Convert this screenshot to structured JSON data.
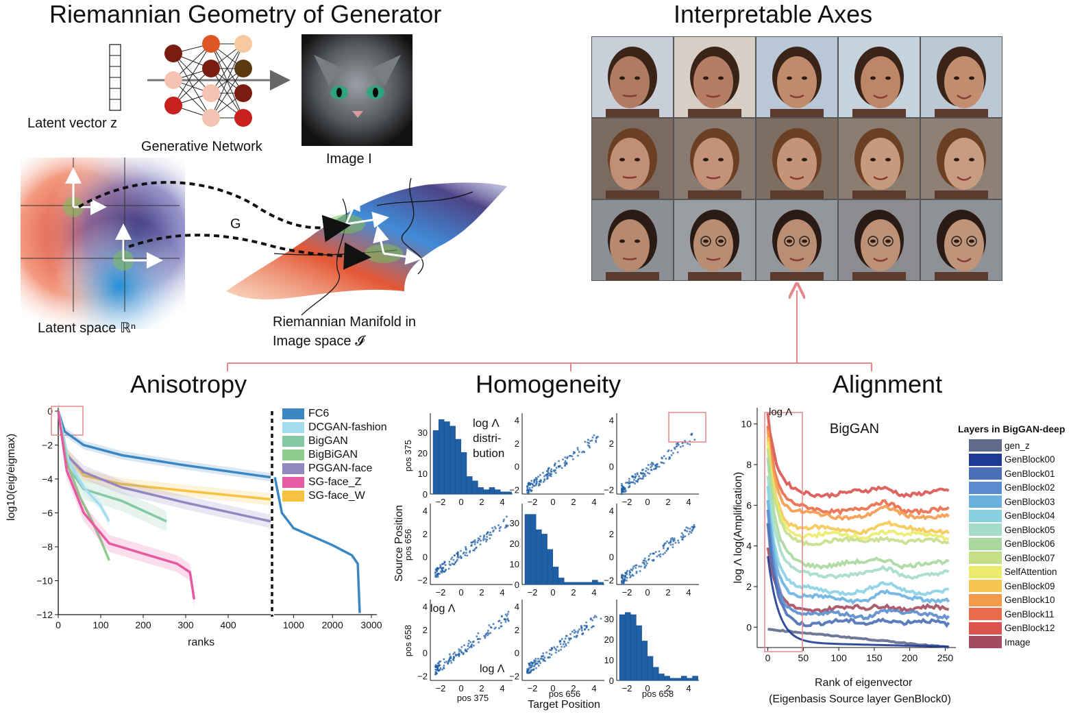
{
  "titles": {
    "riemannian": "Riemannian Geometry of Generator",
    "interpretable": "Interpretable Axes",
    "anisotropy": "Anisotropy",
    "homogeneity": "Homogeneity",
    "alignment": "Alignment"
  },
  "diagram": {
    "latent_vector_label": "Latent vector z",
    "network_label": "Generative Network",
    "image_label": "Image I",
    "g_label": "G",
    "latent_space_label": "Latent space ℝⁿ",
    "manifold_label_1": "Riemannian Manifold in",
    "manifold_label_2": "Image space 𝓘"
  },
  "faces": {
    "rows": [
      {
        "tones": [
          "#b07b63",
          "#b57e64",
          "#c08a6c",
          "#bd8668",
          "#c28e6f"
        ],
        "bg": [
          "#c9cfd8",
          "#d7cfc6",
          "#b9c7d6",
          "#c6d2dc",
          "#bcc9d5"
        ],
        "hair": "#3a2418"
      },
      {
        "tones": [
          "#c08f75",
          "#c39278",
          "#c39478",
          "#c69a7d",
          "#c89c80"
        ],
        "bg": [
          "#7a6a60",
          "#8a7b72",
          "#7e6e62",
          "#8b7c70",
          "#8e8075"
        ],
        "hair": "#6a3f24"
      },
      {
        "tones": [
          "#b78a70",
          "#b98d72",
          "#ba8e74",
          "#bd9176",
          "#c09479"
        ],
        "bg": [
          "#8c8f94",
          "#9a9da2",
          "#93969a",
          "#8a8c90",
          "#8e9195"
        ],
        "hair": "#2a1c14"
      }
    ]
  },
  "anisotropy_chart": {
    "ylabel": "log10(eig/eigmax)",
    "xlabel": "ranks",
    "yticks": [
      "0",
      "−2",
      "−4",
      "−6",
      "−8",
      "−10",
      "−12"
    ],
    "xticks_left": [
      "0",
      "100",
      "200",
      "300",
      "400"
    ],
    "xticks_right": [
      "1000",
      "2000",
      "3000"
    ],
    "legend": [
      {
        "name": "FC6",
        "color": "#3a87c3"
      },
      {
        "name": "DCGAN-fashion",
        "color": "#a6dcef"
      },
      {
        "name": "BigGAN",
        "color": "#84c9a4"
      },
      {
        "name": "BigBiGAN",
        "color": "#8ecd8c"
      },
      {
        "name": "PGGAN-face",
        "color": "#9387c1"
      },
      {
        "name": "SG-face_Z",
        "color": "#e55aa2"
      },
      {
        "name": "SG-face_W",
        "color": "#f5c242"
      }
    ]
  },
  "homogeneity_chart": {
    "ylabel": "Source Position",
    "xlabel": "Target Position",
    "row_labels": [
      "pos 375",
      "pos 656",
      "pos 658"
    ],
    "col_labels": [
      "pos 375",
      "pos 656",
      "pos 658"
    ],
    "hist_annotation_1": "log Λ",
    "hist_annotation_2": "distri-",
    "hist_annotation_3": "bution",
    "scatter_annotation_y": "log Λ",
    "scatter_annotation_x": "log Λ",
    "xticks": [
      "−2",
      "0",
      "2",
      "4"
    ],
    "yticks_top": [
      "0",
      "10",
      "20",
      "30"
    ],
    "yticks_scatter": [
      "−2",
      "0",
      "2",
      "4"
    ],
    "yticks_hist2": [
      "0",
      "10",
      "20",
      "30"
    ]
  },
  "alignment_chart": {
    "title": "BigGAN",
    "corner_label": "log Λ",
    "ylabel": "log Λ  log(Amplification)",
    "xlabel": "Rank of eigenvector",
    "xlabel2": "(Eigenbasis Source layer GenBlock0)",
    "yticks": [
      "10",
      "8",
      "6",
      "4",
      "2",
      "0"
    ],
    "xticks": [
      "0",
      "50",
      "100",
      "150",
      "200",
      "250"
    ],
    "legend_title": "Layers in BigGAN-deep",
    "layers": [
      {
        "name": "gen_z",
        "color": "#5f6a8c"
      },
      {
        "name": "GenBlock00",
        "color": "#1f3a93"
      },
      {
        "name": "GenBlock01",
        "color": "#4a6fb5"
      },
      {
        "name": "GenBlock02",
        "color": "#5a8bcc"
      },
      {
        "name": "GenBlock03",
        "color": "#69b2e0"
      },
      {
        "name": "GenBlock04",
        "color": "#88d1e3"
      },
      {
        "name": "GenBlock05",
        "color": "#a4dbc9"
      },
      {
        "name": "GenBlock06",
        "color": "#a9d89f"
      },
      {
        "name": "GenBlock07",
        "color": "#c5df88"
      },
      {
        "name": "SelfAttention",
        "color": "#ebeb6c"
      },
      {
        "name": "GenBlock09",
        "color": "#f6c652"
      },
      {
        "name": "GenBlock10",
        "color": "#f39a4b"
      },
      {
        "name": "GenBlock11",
        "color": "#e96a4a"
      },
      {
        "name": "GenBlock12",
        "color": "#d9534f"
      },
      {
        "name": "Image",
        "color": "#a44c5f"
      }
    ]
  }
}
